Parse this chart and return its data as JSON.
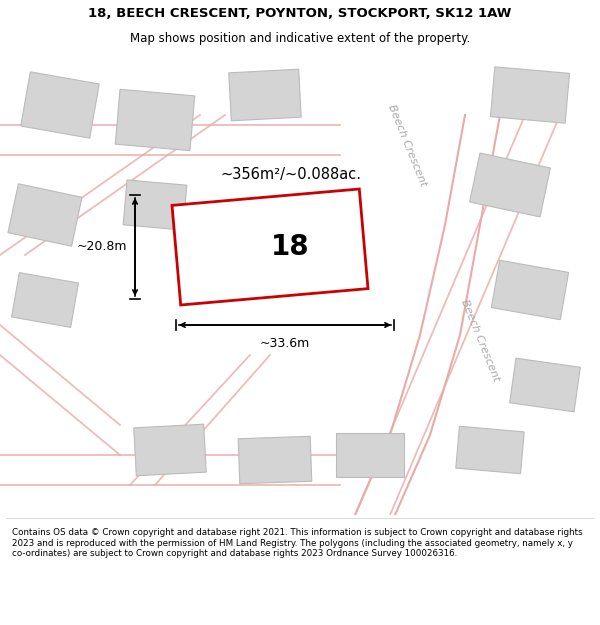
{
  "title_line1": "18, BEECH CRESCENT, POYNTON, STOCKPORT, SK12 1AW",
  "title_line2": "Map shows position and indicative extent of the property.",
  "footer_text": "Contains OS data © Crown copyright and database right 2021. This information is subject to Crown copyright and database rights 2023 and is reproduced with the permission of HM Land Registry. The polygons (including the associated geometry, namely x, y co-ordinates) are subject to Crown copyright and database rights 2023 Ordnance Survey 100026316.",
  "map_bg": "#ebebeb",
  "property_label": "18",
  "area_label": "~356m²/~0.088ac.",
  "dim_width_label": "~33.6m",
  "dim_height_label": "~20.8m",
  "road_label": "Beech Crescent",
  "plot_color": "#cc0000",
  "plot_fill": "#ffffff",
  "building_fill": "#d4d4d4",
  "building_edge": "#bbbbbb",
  "road_line_color": "#e8aaaa",
  "road_stripe_color": "#cccccc",
  "text_color_gray": "#aaaaaa"
}
